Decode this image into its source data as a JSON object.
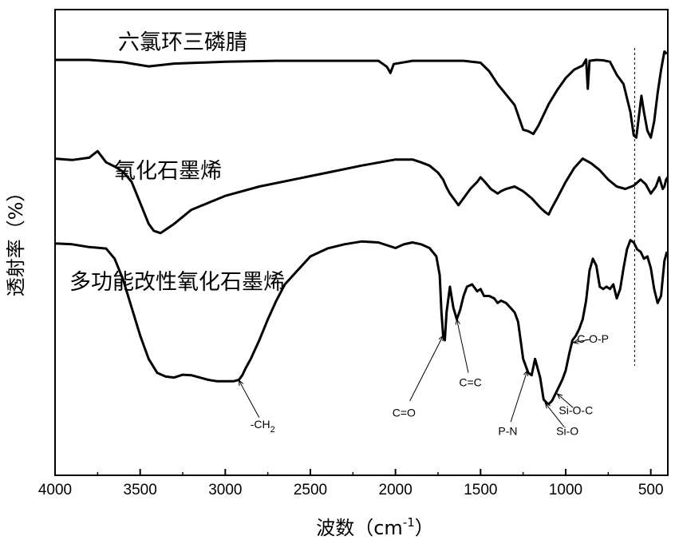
{
  "chart_data": {
    "type": "line",
    "xlabel": "波数（cm",
    "xlabel_sup": "-1",
    "xlabel_close": "）",
    "ylabel": "透射率（%）",
    "xlim": [
      4000,
      400
    ],
    "ylim": [
      0,
      100
    ],
    "x_ticks": [
      "4000",
      "3500",
      "3000",
      "2500",
      "2000",
      "1500",
      "1000",
      "500"
    ],
    "grid": false,
    "series": [
      {
        "name": "六氯环三磷腈",
        "x": [
          4000,
          3800,
          3600,
          3450,
          3300,
          3000,
          2700,
          2400,
          2100,
          2050,
          2030,
          2010,
          1900,
          1700,
          1600,
          1500,
          1450,
          1400,
          1300,
          1250,
          1220,
          1190,
          1160,
          1100,
          1050,
          1000,
          950,
          900,
          880,
          870,
          860,
          820,
          780,
          740,
          700,
          660,
          620,
          600,
          585,
          570,
          555,
          540,
          520,
          500,
          480,
          460,
          440,
          420,
          405
        ],
        "values": [
          89.2,
          89.2,
          88.7,
          87.8,
          88.4,
          88.8,
          89.0,
          89.0,
          89.0,
          87.7,
          86.4,
          88.3,
          89.0,
          89.0,
          89.0,
          88.6,
          86.8,
          84.0,
          79.5,
          74.2,
          73.9,
          73.3,
          75.1,
          79.7,
          82.7,
          85.3,
          87.1,
          88.0,
          89.3,
          83.0,
          89.0,
          89.2,
          89.1,
          88.8,
          86.0,
          84.0,
          78.0,
          73.0,
          72.5,
          77.0,
          81.5,
          78.0,
          74.0,
          72.5,
          76.0,
          82.0,
          87.0,
          91.0,
          90.5
        ]
      },
      {
        "name": "氧化石墨烯",
        "x": [
          4000,
          3900,
          3800,
          3750,
          3700,
          3650,
          3600,
          3550,
          3500,
          3450,
          3420,
          3380,
          3300,
          3200,
          3000,
          2800,
          2600,
          2400,
          2200,
          2000,
          1900,
          1850,
          1800,
          1750,
          1720,
          1700,
          1680,
          1650,
          1630,
          1600,
          1560,
          1520,
          1500,
          1470,
          1440,
          1400,
          1380,
          1350,
          1300,
          1250,
          1200,
          1150,
          1120,
          1100,
          1080,
          1050,
          1000,
          950,
          900,
          850,
          800,
          750,
          700,
          650,
          600,
          560,
          530,
          500,
          470,
          450,
          430,
          420,
          410,
          400
        ],
        "values": [
          68.0,
          67.7,
          68.2,
          69.6,
          67.2,
          66.3,
          65.2,
          63.0,
          58.5,
          54.0,
          52.5,
          52.0,
          54.0,
          57.0,
          60.0,
          62.0,
          63.5,
          65.0,
          66.5,
          67.8,
          67.8,
          67.2,
          66.5,
          65.0,
          63.5,
          61.8,
          60.5,
          59.0,
          58.0,
          59.5,
          61.5,
          63.0,
          64.0,
          62.8,
          61.5,
          60.5,
          61.0,
          61.5,
          62.0,
          61.0,
          59.5,
          57.5,
          56.5,
          56.0,
          57.5,
          59.5,
          63.0,
          66.0,
          68.0,
          67.0,
          65.5,
          63.5,
          62.0,
          61.5,
          62.2,
          63.5,
          62.5,
          60.5,
          62.0,
          64.0,
          61.5,
          62.0,
          63.5,
          64.0
        ]
      },
      {
        "name": "多功能改性氧化石墨烯",
        "x": [
          4000,
          3900,
          3800,
          3700,
          3650,
          3600,
          3550,
          3500,
          3450,
          3400,
          3350,
          3300,
          3250,
          3200,
          3150,
          3100,
          3050,
          3000,
          2950,
          2920,
          2900,
          2880,
          2850,
          2800,
          2750,
          2700,
          2650,
          2600,
          2500,
          2400,
          2300,
          2200,
          2100,
          2050,
          2000,
          1950,
          1900,
          1850,
          1800,
          1760,
          1740,
          1730,
          1720,
          1710,
          1700,
          1680,
          1660,
          1640,
          1620,
          1600,
          1580,
          1550,
          1520,
          1500,
          1480,
          1450,
          1420,
          1400,
          1380,
          1350,
          1320,
          1300,
          1280,
          1250,
          1220,
          1200,
          1180,
          1150,
          1130,
          1110,
          1100,
          1080,
          1060,
          1040,
          1020,
          1000,
          980,
          960,
          940,
          920,
          900,
          880,
          860,
          840,
          820,
          800,
          780,
          760,
          740,
          720,
          700,
          680,
          660,
          640,
          620,
          600,
          580,
          560,
          540,
          520,
          500,
          480,
          460,
          440,
          420,
          405
        ],
        "values": [
          49.8,
          49.6,
          49.0,
          48.7,
          46.5,
          42.0,
          36.0,
          30.0,
          25.0,
          22.0,
          21.2,
          21.0,
          21.6,
          21.5,
          21.0,
          20.5,
          20.2,
          20.2,
          20.2,
          20.5,
          21.5,
          23.0,
          25.0,
          29.0,
          33.5,
          37.5,
          41.0,
          43.0,
          47.0,
          48.7,
          49.6,
          50.2,
          50.0,
          49.4,
          48.8,
          49.6,
          50.0,
          49.6,
          48.8,
          47.0,
          43.0,
          35.0,
          30.0,
          29.0,
          35.0,
          40.5,
          36.0,
          33.5,
          35.5,
          38.5,
          40.5,
          41.0,
          39.5,
          40.0,
          38.5,
          38.5,
          38.0,
          37.0,
          37.5,
          37.0,
          35.8,
          35.0,
          33.0,
          25.0,
          22.0,
          21.5,
          25.0,
          21.0,
          16.3,
          15.5,
          15.3,
          16.0,
          17.5,
          19.0,
          20.5,
          22.5,
          26.0,
          29.0,
          30.0,
          31.5,
          33.5,
          37.5,
          44.0,
          46.5,
          45.0,
          40.5,
          40.0,
          40.5,
          40.0,
          41.0,
          38.0,
          40.0,
          44.5,
          48.5,
          50.5,
          50.0,
          48.5,
          48.0,
          46.5,
          47.0,
          44.5,
          40.0,
          37.0,
          38.5,
          46.0,
          48.0
        ]
      }
    ],
    "annotations": [
      {
        "text": "-CH2",
        "main": "-CH",
        "sub": "2",
        "target_x": 2920,
        "target_y": 20.4,
        "label_x": 2780,
        "label_y": 11.0
      },
      {
        "text": "C=O",
        "target_x": 1720,
        "target_y": 30.0,
        "label_x": 1950,
        "label_y": 13.5
      },
      {
        "text": "C=C",
        "target_x": 1640,
        "target_y": 33.5,
        "label_x": 1560,
        "label_y": 20.0
      },
      {
        "text": "P-N",
        "target_x": 1225,
        "target_y": 22.5,
        "label_x": 1340,
        "label_y": 9.5
      },
      {
        "text": "Si-O",
        "target_x": 1120,
        "target_y": 15.5,
        "label_x": 990,
        "label_y": 9.5
      },
      {
        "text": "Si-O-C",
        "target_x": 1050,
        "target_y": 17.5,
        "label_x": 940,
        "label_y": 14.0
      },
      {
        "text": "C-O-P",
        "target_x": 955,
        "target_y": 28.5,
        "label_x": 840,
        "label_y": 29.3
      }
    ],
    "reference_line_x": 595
  }
}
